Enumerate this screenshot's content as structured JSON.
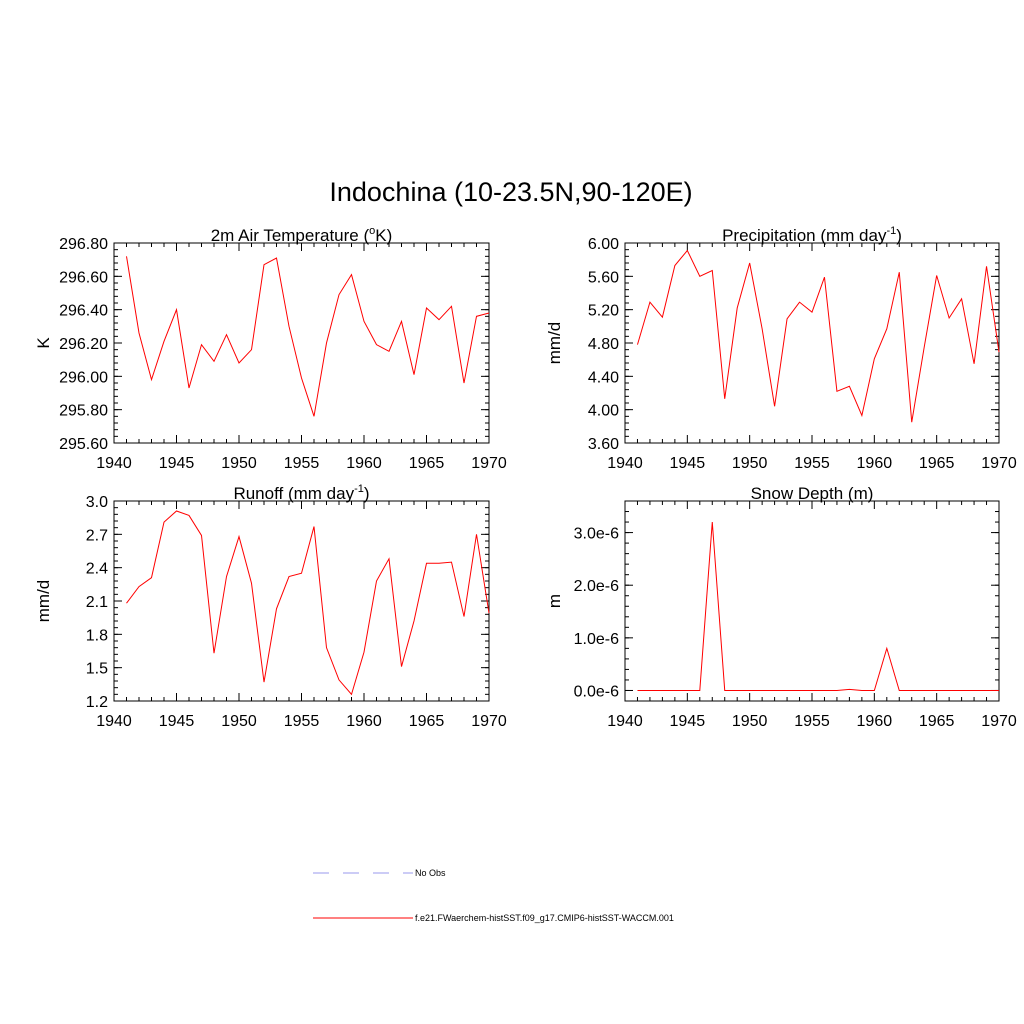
{
  "title": "Indochina (10-23.5N,90-120E)",
  "colors": {
    "model_line": "#ff0000",
    "obs_line": "#9999ee",
    "axis": "#000000"
  },
  "legend": {
    "entries": [
      {
        "label": "No Obs",
        "style": "dashed",
        "color": "#9999ee"
      },
      {
        "label": "f.e21.FWaerchem-histSST.f09_g17.CMIP6-histSST-WACCM.001",
        "style": "solid",
        "color": "#ff0000"
      }
    ]
  },
  "chart_data": [
    {
      "type": "line",
      "title_parts": [
        "2m Air Temperature (",
        "o",
        "K)"
      ],
      "ylabel": "K",
      "xlim": [
        1940,
        1970
      ],
      "ylim": [
        295.6,
        296.8
      ],
      "x_ticks": [
        1940,
        1945,
        1950,
        1955,
        1960,
        1965,
        1970
      ],
      "y_ticks": [
        "295.60",
        "295.80",
        "296.00",
        "296.20",
        "296.40",
        "296.60",
        "296.80"
      ],
      "y_tick_values": [
        295.6,
        295.8,
        296.0,
        296.2,
        296.4,
        296.6,
        296.8
      ],
      "x": [
        1941,
        1942,
        1943,
        1944,
        1945,
        1946,
        1947,
        1948,
        1949,
        1950,
        1951,
        1952,
        1953,
        1954,
        1955,
        1956,
        1957,
        1958,
        1959,
        1960,
        1961,
        1962,
        1963,
        1964,
        1965,
        1966,
        1967,
        1968,
        1969,
        1970
      ],
      "series": [
        {
          "name": "f.e21.FWaerchem-histSST.f09_g17.CMIP6-histSST-WACCM.001",
          "values": [
            296.72,
            296.26,
            295.98,
            296.21,
            296.4,
            295.93,
            296.19,
            296.09,
            296.25,
            296.08,
            296.16,
            296.67,
            296.71,
            296.3,
            295.99,
            295.76,
            296.2,
            296.49,
            296.61,
            296.33,
            296.19,
            296.15,
            296.33,
            296.01,
            296.41,
            296.34,
            296.42,
            295.96,
            296.36,
            296.38
          ]
        }
      ]
    },
    {
      "type": "line",
      "title_parts": [
        "Precipitation (mm day",
        "-1",
        ")"
      ],
      "ylabel": "mm/d",
      "xlim": [
        1940,
        1970
      ],
      "ylim": [
        3.6,
        6.0
      ],
      "x_ticks": [
        1940,
        1945,
        1950,
        1955,
        1960,
        1965,
        1970
      ],
      "y_ticks": [
        "3.60",
        "4.00",
        "4.40",
        "4.80",
        "5.20",
        "5.60",
        "6.00"
      ],
      "y_tick_values": [
        3.6,
        4.0,
        4.4,
        4.8,
        5.2,
        5.6,
        6.0
      ],
      "x": [
        1941,
        1942,
        1943,
        1944,
        1945,
        1946,
        1947,
        1948,
        1949,
        1950,
        1951,
        1952,
        1953,
        1954,
        1955,
        1956,
        1957,
        1958,
        1959,
        1960,
        1961,
        1962,
        1963,
        1964,
        1965,
        1966,
        1967,
        1968,
        1969,
        1970
      ],
      "series": [
        {
          "name": "f.e21.FWaerchem-histSST.f09_g17.CMIP6-histSST-WACCM.001",
          "values": [
            4.78,
            5.29,
            5.11,
            5.73,
            5.91,
            5.6,
            5.67,
            4.13,
            5.22,
            5.76,
            4.97,
            4.04,
            5.09,
            5.29,
            5.17,
            5.59,
            4.22,
            4.28,
            3.93,
            4.61,
            4.97,
            5.65,
            3.85,
            4.75,
            5.61,
            5.1,
            5.33,
            4.55,
            5.72,
            4.69
          ]
        }
      ]
    },
    {
      "type": "line",
      "title_parts": [
        "Runoff (mm day",
        "-1",
        ")"
      ],
      "ylabel": "mm/d",
      "xlim": [
        1940,
        1970
      ],
      "ylim": [
        1.2,
        3.0
      ],
      "x_ticks": [
        1940,
        1945,
        1950,
        1955,
        1960,
        1965,
        1970
      ],
      "y_ticks": [
        "1.2",
        "1.5",
        "1.8",
        "2.1",
        "2.4",
        "2.7",
        "3.0"
      ],
      "y_tick_values": [
        1.2,
        1.5,
        1.8,
        2.1,
        2.4,
        2.7,
        3.0
      ],
      "x": [
        1941,
        1942,
        1943,
        1944,
        1945,
        1946,
        1947,
        1948,
        1949,
        1950,
        1951,
        1952,
        1953,
        1954,
        1955,
        1956,
        1957,
        1958,
        1959,
        1960,
        1961,
        1962,
        1963,
        1964,
        1965,
        1966,
        1967,
        1968,
        1969,
        1970
      ],
      "series": [
        {
          "name": "f.e21.FWaerchem-histSST.f09_g17.CMIP6-histSST-WACCM.001",
          "values": [
            2.08,
            2.23,
            2.31,
            2.81,
            2.91,
            2.87,
            2.69,
            1.63,
            2.32,
            2.68,
            2.26,
            1.37,
            2.03,
            2.32,
            2.35,
            2.77,
            1.68,
            1.39,
            1.26,
            1.64,
            2.28,
            2.48,
            1.51,
            1.92,
            2.44,
            2.44,
            2.45,
            1.96,
            2.7,
            1.99
          ]
        }
      ]
    },
    {
      "type": "line",
      "title_parts": [
        "Snow Depth (m)"
      ],
      "ylabel": "m",
      "xlim": [
        1940,
        1970
      ],
      "ylim": [
        -2e-07,
        3.6e-06
      ],
      "x_ticks": [
        1940,
        1945,
        1950,
        1955,
        1960,
        1965,
        1970
      ],
      "y_ticks": [
        "0.0e-6",
        "1.0e-6",
        "2.0e-6",
        "3.0e-6"
      ],
      "y_tick_values": [
        0.0,
        1e-06,
        2e-06,
        3e-06
      ],
      "x": [
        1941,
        1942,
        1943,
        1944,
        1945,
        1946,
        1947,
        1948,
        1949,
        1950,
        1951,
        1952,
        1953,
        1954,
        1955,
        1956,
        1957,
        1958,
        1959,
        1960,
        1961,
        1962,
        1963,
        1964,
        1965,
        1966,
        1967,
        1968,
        1969,
        1970
      ],
      "series": [
        {
          "name": "f.e21.FWaerchem-histSST.f09_g17.CMIP6-histSST-WACCM.001",
          "values": [
            0,
            0,
            0,
            0,
            0,
            0,
            3.2e-06,
            0,
            0,
            0,
            0,
            0,
            0,
            0,
            0,
            0,
            0,
            2e-08,
            0,
            0,
            8e-07,
            0,
            0,
            0,
            0,
            0,
            0,
            0,
            0,
            0
          ]
        }
      ]
    }
  ]
}
